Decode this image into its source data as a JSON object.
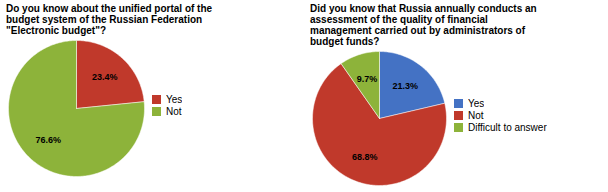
{
  "chart_data": [
    {
      "type": "pie",
      "title": "Do you know about the unified portal of the\nbudget system of the Russian Federation\n\"Electronic budget\"?",
      "categories": [
        "Yes",
        "Not"
      ],
      "values": [
        23.4,
        76.6
      ],
      "value_labels": [
        "23.4%",
        "76.6%"
      ],
      "colors": [
        "#c0392b",
        "#8db33a"
      ],
      "data_labels": true,
      "legend": "right"
    },
    {
      "type": "pie",
      "title": "Did you know that Russia annually conducts an\nassessment of the quality of financial\nmanagement carried out by administrators of\nbudget funds?",
      "categories": [
        "Yes",
        "Not",
        "Difficult to answer"
      ],
      "values": [
        21.3,
        68.8,
        9.7
      ],
      "value_labels": [
        "21.3%",
        "68.8%",
        "9.7%"
      ],
      "colors": [
        "#4472c4",
        "#c0392b",
        "#8db33a"
      ],
      "data_labels": true,
      "legend": "right"
    }
  ]
}
